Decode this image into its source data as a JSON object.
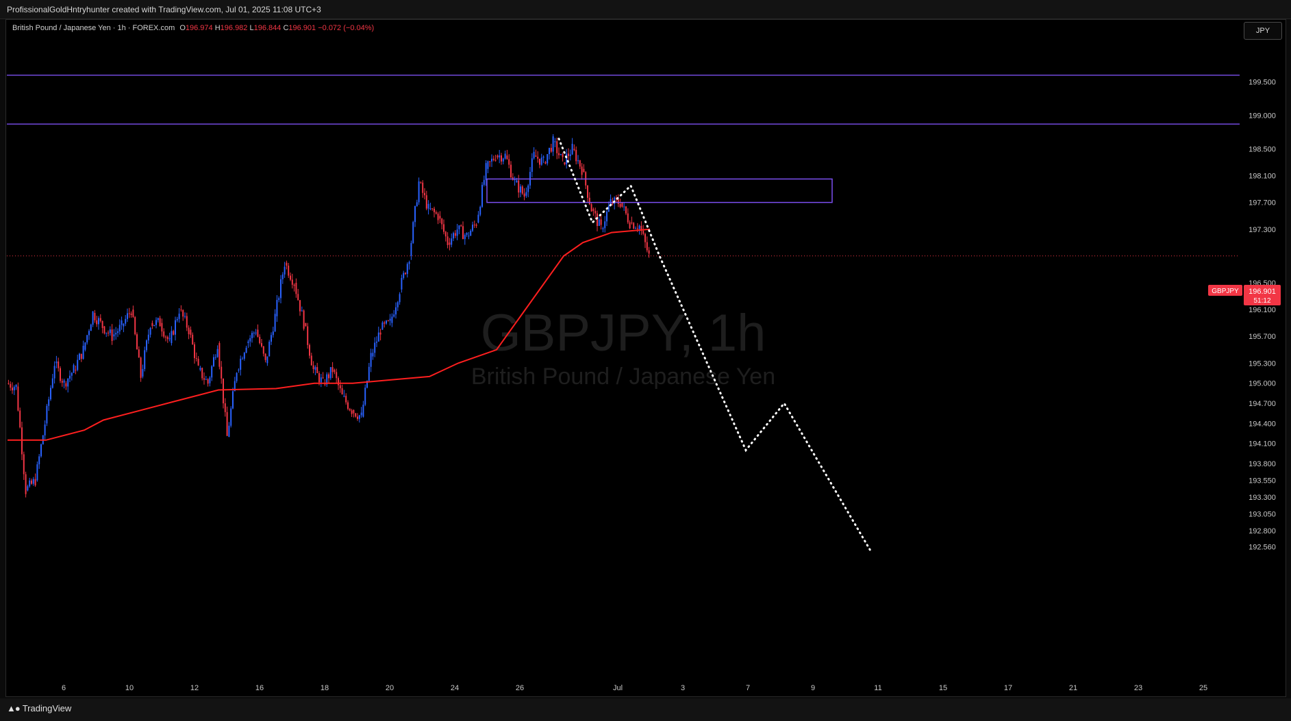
{
  "header": {
    "credit": "ProfissionalGoldHntryhunter created with TradingView.com, Jul 01, 2025 11:08 UTC+3"
  },
  "legend": {
    "instrument": "British Pound / Japanese Yen · 1h · FOREX.com",
    "o_label": "O",
    "o_value": "196.974",
    "h_label": "H",
    "h_value": "196.982",
    "l_label": "L",
    "l_value": "196.844",
    "c_label": "C",
    "c_value": "196.901",
    "change": "−0.072 (−0.04%)"
  },
  "currency_button": "JPY",
  "watermark": {
    "symbol": "GBPJPY, 1h",
    "name": "British Pound / Japanese Yen"
  },
  "price_label": {
    "symbol": "GBPJPY",
    "price": "196.901",
    "countdown": "51:12"
  },
  "footer": {
    "logo_text": "TradingView"
  },
  "colors": {
    "up": "#2962ff",
    "down": "#f23645",
    "ma": "#ff1f1f",
    "level_line": "#7b4ff0",
    "zone_border": "#7b4ff0",
    "projection": "#ffffff",
    "price_line": "#f23645"
  },
  "chart_data": {
    "type": "candlestick",
    "timeframe": "1h",
    "y_axis": {
      "ticks": [
        "199.500",
        "199.000",
        "198.500",
        "198.100",
        "197.700",
        "197.300",
        "196.500",
        "196.100",
        "195.700",
        "195.300",
        "195.000",
        "194.700",
        "194.400",
        "194.100",
        "193.800",
        "193.550",
        "193.300",
        "193.050",
        "192.800",
        "192.560"
      ]
    },
    "x_axis": {
      "ticks": [
        "6",
        "10",
        "12",
        "16",
        "18",
        "20",
        "24",
        "26",
        "Jul",
        "3",
        "7",
        "9",
        "11",
        "15",
        "17",
        "21",
        "23",
        "25"
      ]
    },
    "close_path": [
      [
        0,
        195.0
      ],
      [
        1,
        194.95
      ],
      [
        2,
        193.4
      ],
      [
        3,
        193.55
      ],
      [
        4,
        194.4
      ],
      [
        5,
        195.3
      ],
      [
        6,
        195.0
      ],
      [
        7,
        195.2
      ],
      [
        8,
        195.5
      ],
      [
        9,
        196.05
      ],
      [
        10,
        195.85
      ],
      [
        11,
        195.7
      ],
      [
        12,
        195.85
      ],
      [
        13,
        196.1
      ],
      [
        14,
        195.1
      ],
      [
        15,
        195.9
      ],
      [
        16,
        195.9
      ],
      [
        17,
        195.6
      ],
      [
        18,
        196.1
      ],
      [
        19,
        195.8
      ],
      [
        20,
        195.2
      ],
      [
        21,
        195.0
      ],
      [
        22,
        195.6
      ],
      [
        23,
        194.2
      ],
      [
        24,
        195.2
      ],
      [
        25,
        195.6
      ],
      [
        26,
        195.8
      ],
      [
        27,
        195.3
      ],
      [
        28,
        196.0
      ],
      [
        29,
        196.8
      ],
      [
        30,
        196.5
      ],
      [
        31,
        195.9
      ],
      [
        32,
        195.2
      ],
      [
        33,
        195.0
      ],
      [
        34,
        195.2
      ],
      [
        35,
        194.8
      ],
      [
        36,
        194.6
      ],
      [
        37,
        194.5
      ],
      [
        38,
        195.4
      ],
      [
        39,
        195.8
      ],
      [
        40,
        195.9
      ],
      [
        41,
        196.4
      ],
      [
        42,
        196.9
      ],
      [
        43,
        198.0
      ],
      [
        44,
        197.6
      ],
      [
        45,
        197.5
      ],
      [
        46,
        197.1
      ],
      [
        47,
        197.3
      ],
      [
        48,
        197.2
      ],
      [
        49,
        197.4
      ],
      [
        50,
        198.2
      ],
      [
        51,
        198.4
      ],
      [
        52,
        198.4
      ],
      [
        53,
        198.0
      ],
      [
        54,
        197.8
      ],
      [
        55,
        198.4
      ],
      [
        56,
        198.3
      ],
      [
        57,
        198.6
      ],
      [
        58,
        198.3
      ],
      [
        59,
        198.5
      ],
      [
        60,
        198.2
      ],
      [
        61,
        197.6
      ],
      [
        62,
        197.3
      ],
      [
        63,
        197.7
      ],
      [
        64,
        197.7
      ],
      [
        65,
        197.4
      ],
      [
        66,
        197.35
      ],
      [
        67,
        196.9
      ]
    ],
    "moving_average": [
      [
        0,
        194.15
      ],
      [
        4,
        194.15
      ],
      [
        8,
        194.3
      ],
      [
        10,
        194.45
      ],
      [
        14,
        194.6
      ],
      [
        18,
        194.75
      ],
      [
        22,
        194.9
      ],
      [
        28,
        194.92
      ],
      [
        32,
        195.0
      ],
      [
        36,
        195.0
      ],
      [
        40,
        195.05
      ],
      [
        44,
        195.1
      ],
      [
        47,
        195.3
      ],
      [
        51,
        195.5
      ],
      [
        53,
        195.9
      ],
      [
        56,
        196.5
      ],
      [
        58,
        196.9
      ],
      [
        60,
        197.1
      ],
      [
        63,
        197.25
      ],
      [
        67,
        197.3
      ]
    ],
    "horizontal_levels": [
      199.6,
      198.87
    ],
    "zone": {
      "x_start": 50,
      "x_end": 86,
      "top": 198.05,
      "bottom": 197.7
    },
    "projection": [
      [
        57.5,
        198.65
      ],
      [
        61,
        197.4
      ],
      [
        65,
        197.95
      ],
      [
        68,
        196.9
      ],
      [
        77,
        194.0
      ],
      [
        81,
        194.7
      ],
      [
        90,
        192.5
      ]
    ],
    "current_price": 196.901
  }
}
